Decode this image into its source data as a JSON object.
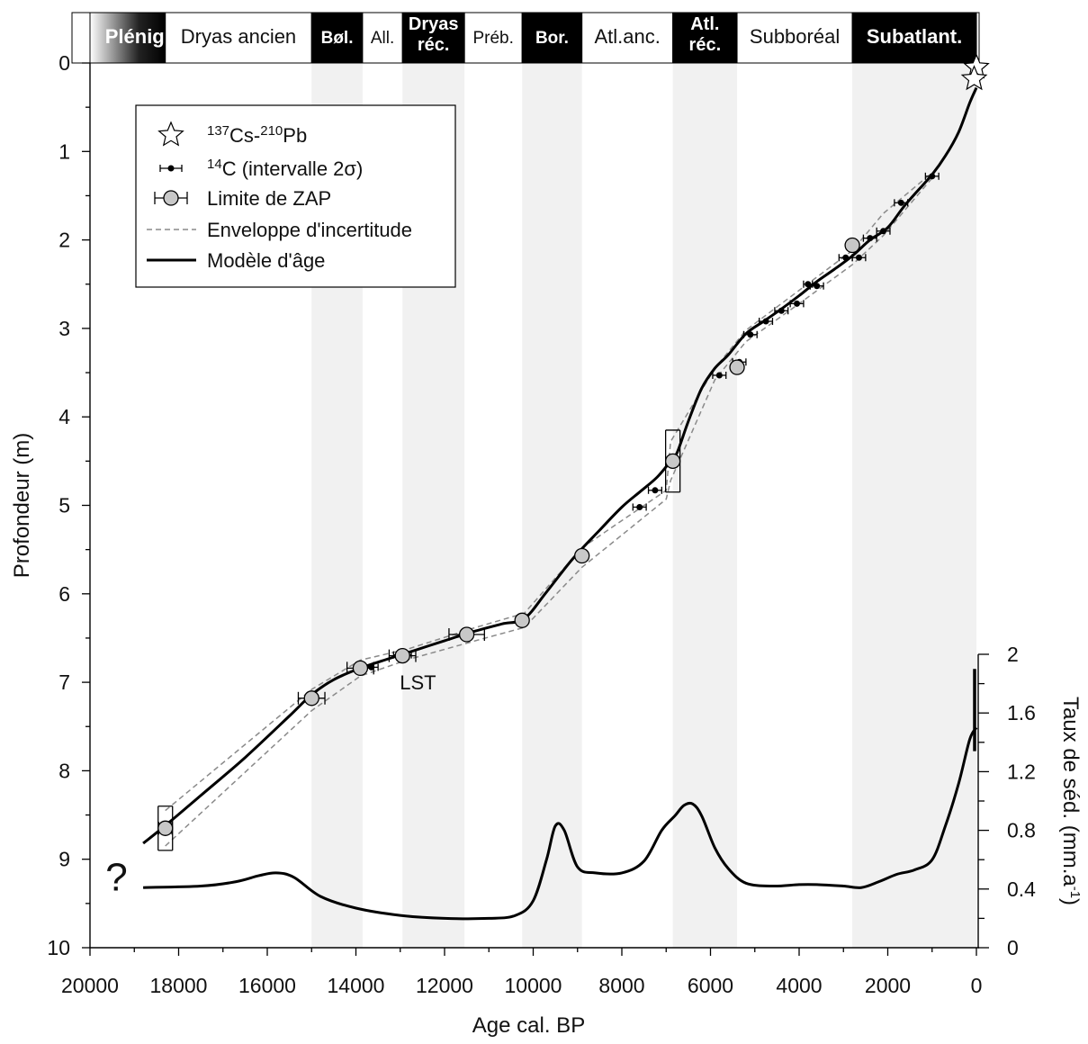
{
  "chart_data": {
    "type": "line",
    "xlabel": "Age cal. BP",
    "ylabel": "Profondeur (m)",
    "y2label": "Taux de séd.  (mm.a-1)",
    "xlim": [
      20000,
      0
    ],
    "ylim": [
      10,
      0
    ],
    "y2lim": [
      0,
      2
    ],
    "x_ticks": [
      20000,
      18000,
      16000,
      14000,
      12000,
      10000,
      8000,
      6000,
      4000,
      2000,
      0
    ],
    "y_ticks": [
      0,
      1,
      2,
      3,
      4,
      5,
      6,
      7,
      8,
      9,
      10
    ],
    "y2_ticks": [
      "0",
      "0.4",
      "0.8",
      "1.2",
      "1.6",
      "2"
    ],
    "periods": [
      {
        "label": "Plénigl.",
        "start": 20000,
        "end": 18300,
        "style": "gradient"
      },
      {
        "label": "Dryas ancien",
        "start": 18300,
        "end": 15000,
        "style": "light"
      },
      {
        "label": "Bøl.",
        "start": 15000,
        "end": 13850,
        "style": "dark"
      },
      {
        "label": "All.",
        "start": 13850,
        "end": 12950,
        "style": "light"
      },
      {
        "label": "Dryas réc.",
        "start": 12950,
        "end": 11550,
        "style": "dark"
      },
      {
        "label": "Préb.",
        "start": 11550,
        "end": 10250,
        "style": "light"
      },
      {
        "label": "Bor.",
        "start": 10250,
        "end": 8900,
        "style": "dark"
      },
      {
        "label": "Atl.anc.",
        "start": 8900,
        "end": 6850,
        "style": "light"
      },
      {
        "label": "Atl. réc.",
        "start": 6850,
        "end": 5400,
        "style": "dark"
      },
      {
        "label": "Subboréal",
        "start": 5400,
        "end": 2800,
        "style": "light"
      },
      {
        "label": "Subatlant.",
        "start": 2800,
        "end": 0,
        "style": "dark"
      }
    ],
    "legend": {
      "position": "top-left",
      "items": [
        {
          "label_pre": "137",
          "label_a": "Cs-",
          "label_sup2": "210",
          "label_b": "Pb",
          "symbol": "star"
        },
        {
          "label_pre": "14",
          "label_a": "C (intervalle 2σ)",
          "symbol": "dot-errorbar"
        },
        {
          "label_a": "Limite de ZAP",
          "symbol": "circle-errorbar"
        },
        {
          "label_a": "Enveloppe d'incertitude",
          "symbol": "dashed"
        },
        {
          "label_a": "Modèle d'âge",
          "symbol": "solid"
        }
      ]
    },
    "series": [
      {
        "role": "age-model",
        "x": [
          18800,
          18300,
          17500,
          16500,
          15500,
          15000,
          14500,
          13900,
          13300,
          12800,
          12000,
          11300,
          10700,
          10200,
          9700,
          9100,
          8500,
          8000,
          7600,
          7200,
          6900,
          6750,
          6500,
          6200,
          5900,
          5600,
          5200,
          4800,
          4400,
          4000,
          3600,
          3200,
          2800,
          2400,
          2000,
          1600,
          1000,
          700,
          400,
          150,
          0
        ],
        "y": [
          8.82,
          8.62,
          8.28,
          7.85,
          7.38,
          7.14,
          6.97,
          6.84,
          6.74,
          6.66,
          6.53,
          6.42,
          6.34,
          6.28,
          5.98,
          5.6,
          5.28,
          5.02,
          4.85,
          4.68,
          4.5,
          4.4,
          4.05,
          3.68,
          3.45,
          3.3,
          3.06,
          2.92,
          2.78,
          2.63,
          2.47,
          2.33,
          2.18,
          2.0,
          1.86,
          1.6,
          1.26,
          1.05,
          0.78,
          0.45,
          0.28
        ]
      },
      {
        "role": "envelope-upper",
        "x": [
          18300,
          15000,
          13900,
          12800,
          11300,
          10200,
          8900,
          7000,
          6900,
          5900,
          5200,
          4000,
          2800,
          2100,
          1000
        ],
        "y": [
          8.45,
          7.08,
          6.75,
          6.62,
          6.38,
          6.22,
          5.48,
          4.83,
          4.28,
          3.45,
          3.02,
          2.57,
          2.12,
          1.7,
          1.24
        ]
      },
      {
        "role": "envelope-lower",
        "x": [
          18300,
          15000,
          13900,
          12800,
          11300,
          10200,
          8900,
          7000,
          6900,
          5900,
          5200,
          4000,
          2800,
          2100,
          1000
        ],
        "y": [
          8.85,
          7.32,
          6.93,
          6.74,
          6.53,
          6.38,
          5.7,
          4.93,
          4.72,
          3.58,
          3.15,
          2.72,
          2.28,
          1.95,
          1.3
        ]
      },
      {
        "role": "sedimentation-rate",
        "x": [
          18800,
          17500,
          16700,
          16200,
          15800,
          15400,
          14800,
          14000,
          13000,
          12000,
          11000,
          10400,
          10000,
          9700,
          9500,
          9300,
          9000,
          8600,
          8000,
          7500,
          7100,
          6800,
          6600,
          6400,
          6200,
          5900,
          5600,
          5200,
          4600,
          4000,
          3600,
          3000,
          2600,
          2200,
          1800,
          1400,
          1000,
          700,
          400,
          150,
          0
        ],
        "y": [
          0.41,
          0.42,
          0.45,
          0.49,
          0.51,
          0.48,
          0.35,
          0.27,
          0.22,
          0.2,
          0.2,
          0.22,
          0.32,
          0.6,
          0.83,
          0.8,
          0.55,
          0.51,
          0.51,
          0.59,
          0.8,
          0.9,
          0.97,
          0.98,
          0.9,
          0.68,
          0.54,
          0.44,
          0.42,
          0.43,
          0.43,
          0.42,
          0.41,
          0.45,
          0.5,
          0.53,
          0.6,
          0.83,
          1.12,
          1.42,
          1.5
        ]
      }
    ],
    "c14_dates": [
      {
        "x": 13650,
        "y": 6.83,
        "err": 150
      },
      {
        "x": 12950,
        "y": 6.69,
        "err": 200
      },
      {
        "x": 7250,
        "y": 4.83,
        "err": 150
      },
      {
        "x": 7600,
        "y": 5.02,
        "err": 150
      },
      {
        "x": 5800,
        "y": 3.53,
        "err": 150
      },
      {
        "x": 5350,
        "y": 3.38,
        "err": 150
      },
      {
        "x": 5100,
        "y": 3.07,
        "err": 150
      },
      {
        "x": 4750,
        "y": 2.92,
        "err": 150
      },
      {
        "x": 4400,
        "y": 2.8,
        "err": 150
      },
      {
        "x": 4050,
        "y": 2.72,
        "err": 150
      },
      {
        "x": 3600,
        "y": 2.52,
        "err": 150
      },
      {
        "x": 3800,
        "y": 2.5,
        "err": 100
      },
      {
        "x": 2950,
        "y": 2.2,
        "err": 150
      },
      {
        "x": 2650,
        "y": 2.2,
        "err": 150
      },
      {
        "x": 2100,
        "y": 1.9,
        "err": 150
      },
      {
        "x": 2400,
        "y": 1.98,
        "err": 150
      },
      {
        "x": 1700,
        "y": 1.58,
        "err": 150
      },
      {
        "x": 1000,
        "y": 1.28,
        "err": 150
      }
    ],
    "zap_limits": [
      {
        "x": 18300,
        "y": 8.65,
        "xerr": 150,
        "yerr": 0.25
      },
      {
        "x": 15000,
        "y": 7.18,
        "xerr": 300,
        "yerr": 0
      },
      {
        "x": 13900,
        "y": 6.84,
        "xerr": 300,
        "yerr": 0
      },
      {
        "x": 12950,
        "y": 6.7,
        "xerr": 300,
        "yerr": 0
      },
      {
        "x": 11500,
        "y": 6.46,
        "xerr": 400,
        "yerr": 0
      },
      {
        "x": 10250,
        "y": 6.3,
        "xerr": 0,
        "yerr": 0
      },
      {
        "x": 8900,
        "y": 5.57,
        "xerr": 0,
        "yerr": 0
      },
      {
        "x": 6850,
        "y": 4.5,
        "xerr": 0,
        "yerr": 0.35
      },
      {
        "x": 5400,
        "y": 3.44,
        "xerr": 0,
        "yerr": 0
      },
      {
        "x": 2800,
        "y": 2.06,
        "xerr": 0,
        "yerr": 0
      }
    ],
    "cs_pb_points": [
      {
        "x": 0,
        "y": 0.05
      },
      {
        "x": 50,
        "y": 0.18
      }
    ],
    "sed_rate_bar": {
      "x": 0,
      "y_from": 1.9,
      "y_to": 1.34
    },
    "annotations": [
      {
        "text": "LST",
        "x": 12600,
        "y": 7.0
      },
      {
        "text": "?",
        "x": 19400,
        "y": 9.15
      }
    ]
  }
}
